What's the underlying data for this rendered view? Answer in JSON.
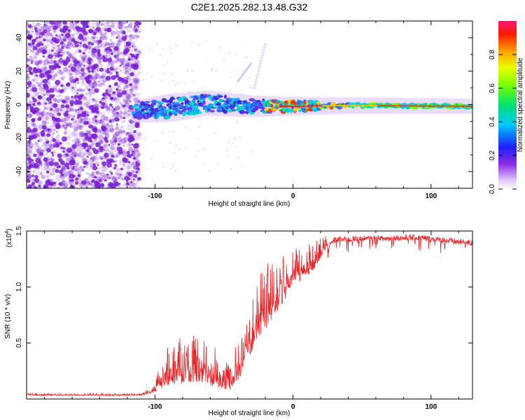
{
  "title": "C2E1.2025.282.13.48.G32",
  "colors": {
    "snr_line": "#e8262a",
    "points": "#7a1fd6",
    "axis": "#000000"
  },
  "chart_data": [
    {
      "type": "heatmap",
      "name": "spectrogram",
      "xlabel": "Height of straight line (km)",
      "ylabel": "Frequency (Hz)",
      "xlim": [
        -193,
        130
      ],
      "ylim": [
        -50,
        50
      ],
      "x_ticks": [
        -100,
        0,
        100
      ],
      "x_tick_labels": [
        "-100",
        "0",
        "100"
      ],
      "y_ticks": [
        -40,
        -20,
        0,
        20,
        40
      ],
      "y_tick_labels": [
        "-40",
        "-20",
        "0",
        "20",
        "40"
      ],
      "noise_region_x": [
        -193,
        -115
      ],
      "signal_band": [
        {
          "x": -115,
          "f_center": -4,
          "f_halfwidth": 4
        },
        {
          "x": -90,
          "f_center": -2,
          "f_halfwidth": 6
        },
        {
          "x": -60,
          "f_center": 1,
          "f_halfwidth": 5
        },
        {
          "x": -30,
          "f_center": -1,
          "f_halfwidth": 4
        },
        {
          "x": 0,
          "f_center": -1,
          "f_halfwidth": 3
        },
        {
          "x": 40,
          "f_center": -0.5,
          "f_halfwidth": 2.5
        },
        {
          "x": 130,
          "f_center": -1,
          "f_halfwidth": 2
        }
      ],
      "streaks": [
        {
          "x0": -28,
          "f0": 10,
          "x1": -20,
          "f1": 37
        },
        {
          "x0": -40,
          "f0": 14,
          "x1": -30,
          "f1": 25
        }
      ],
      "colorbar": {
        "label": "Normalized spectral amplitude",
        "range": [
          0,
          1
        ],
        "ticks": [
          0.0,
          0.2,
          0.4,
          0.6,
          0.8
        ],
        "tick_labels": [
          "0.0",
          "0.2",
          "0.4",
          "0.6",
          "0.8"
        ]
      }
    },
    {
      "type": "line",
      "name": "snr",
      "xlabel": "Height of straight line (km)",
      "ylabel": "SNR (10 * v/v)",
      "scale_label": "(x10",
      "scale_exponent": "4",
      "scale_close": ")",
      "xlim": [
        -193,
        130
      ],
      "ylim": [
        0,
        15000
      ],
      "x_ticks": [
        -100,
        0,
        100
      ],
      "x_tick_labels": [
        "-100",
        "0",
        "100"
      ],
      "y_ticks": [
        5000,
        10000,
        15000
      ],
      "y_tick_labels": [
        "0.5",
        "1.0",
        "1.5"
      ],
      "envelope": [
        {
          "x": -193,
          "base": 300,
          "spike": 200
        },
        {
          "x": -110,
          "base": 300,
          "spike": 200
        },
        {
          "x": -100,
          "base": 600,
          "spike": 800
        },
        {
          "x": -92,
          "base": 1200,
          "spike": 4000
        },
        {
          "x": -70,
          "base": 1500,
          "spike": 4500
        },
        {
          "x": -55,
          "base": 1000,
          "spike": 3500
        },
        {
          "x": -45,
          "base": 700,
          "spike": 2500
        },
        {
          "x": -40,
          "base": 1500,
          "spike": 4000
        },
        {
          "x": -30,
          "base": 4000,
          "spike": 5000
        },
        {
          "x": -22,
          "base": 6000,
          "spike": 6000
        },
        {
          "x": -15,
          "base": 6500,
          "spike": 6000
        },
        {
          "x": -5,
          "base": 9000,
          "spike": 4000
        },
        {
          "x": 5,
          "base": 10500,
          "spike": 3500
        },
        {
          "x": 15,
          "base": 11500,
          "spike": 2500
        },
        {
          "x": 22,
          "base": 13000,
          "spike": 1500
        },
        {
          "x": 30,
          "base": 14200,
          "spike": 1500
        },
        {
          "x": 90,
          "base": 14400,
          "spike": 2200
        },
        {
          "x": 130,
          "base": 13900,
          "spike": 1000
        }
      ]
    }
  ]
}
